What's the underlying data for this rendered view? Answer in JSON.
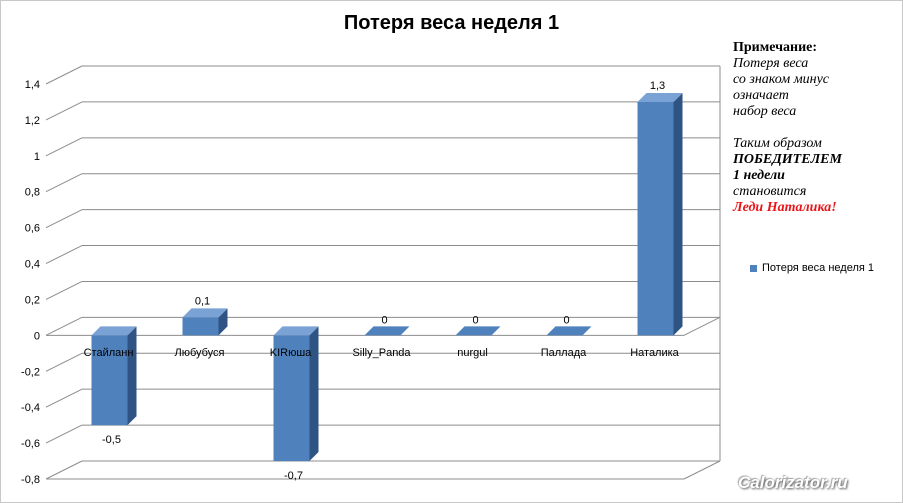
{
  "chart_data": {
    "type": "bar",
    "title": "Потеря веса неделя 1",
    "categories": [
      "Стайланн",
      "Любубуся",
      "KIRюша",
      "Silly_Panda",
      "nurgul",
      "Паллада",
      "Наталика"
    ],
    "series": [
      {
        "name": "Потеря веса неделя 1",
        "values": [
          -0.5,
          0.1,
          -0.7,
          0,
          0,
          0,
          1.3
        ],
        "color": "#4f81bd"
      }
    ],
    "data_labels": [
      "-0,5",
      "0,1",
      "-0,7",
      "0",
      "0",
      "0",
      "1,3"
    ],
    "ylim": [
      -0.8,
      1.4
    ],
    "yticks": [
      1.4,
      1.2,
      1,
      0.8,
      0.6,
      0.4,
      0.2,
      0,
      -0.2,
      -0.4,
      -0.6,
      -0.8
    ],
    "ytick_labels": [
      "1,4",
      "1,2",
      "1",
      "0,8",
      "0,6",
      "0,4",
      "0,2",
      "0",
      "-0,2",
      "-0,4",
      "-0,6",
      "-0,8"
    ],
    "grid": true,
    "legend_position": "right",
    "style": "3d-column"
  },
  "note": {
    "heading": "Примечание:",
    "line1": "Потеря веса",
    "line2": "со знаком минус",
    "line3": "означает",
    "line4": "набор веса",
    "line5": "Таким образом",
    "line6": "ПОБЕДИТЕЛЕМ",
    "line7": "1 недели",
    "line8": "становится",
    "line9": "Леди Наталика!"
  },
  "watermark": "Calorizator.ru",
  "colors": {
    "bar_front": "#4f81bd",
    "bar_side": "#2f5382",
    "bar_top": "#7aa2d4",
    "grid": "#8c8c8c",
    "accent_red": "#e8161a"
  }
}
